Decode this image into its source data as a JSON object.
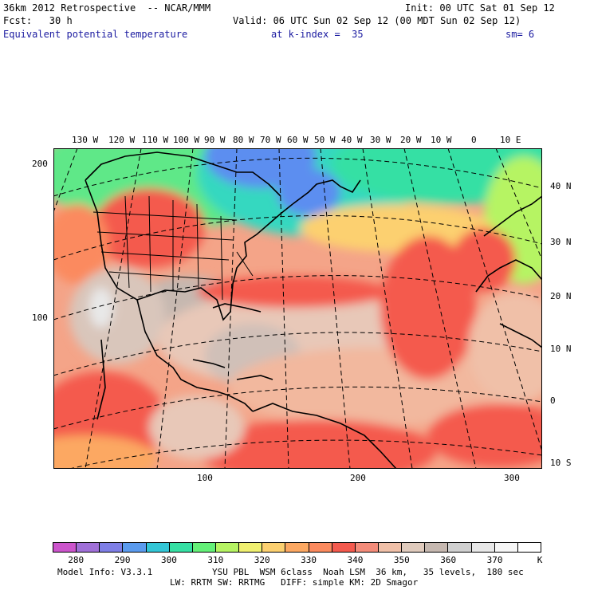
{
  "header": {
    "line1_left": "36km 2012 Retrospective  -- NCAR/MMM",
    "line1_right": "Init: 00 UTC Sat 01 Sep 12",
    "line2_left": "Fcst:   30 h",
    "line2_right": "Valid: 06 UTC Sun 02 Sep 12 (00 MDT Sun 02 Sep 12)",
    "line3_field": "Equivalent potential temperature",
    "line3_level": "at k-index =  35",
    "line3_smooth": "sm= 6"
  },
  "map": {
    "lon_labels_top": [
      "130 W",
      "120 W",
      "110 W",
      "100 W",
      "90 W",
      "80 W",
      "70 W",
      "60 W",
      "50 W",
      "40 W",
      "30 W",
      "20 W",
      "10 W",
      "0",
      "10 E"
    ],
    "lat_labels_right": [
      "40 N",
      "30 N",
      "20 N",
      "10 N",
      "0",
      "10 S"
    ],
    "grid_left_labels": [
      "200",
      "100"
    ],
    "grid_bottom_labels": [
      "100",
      "200",
      "300"
    ]
  },
  "colorbar": {
    "colors": [
      "#cc55cc",
      "#a070d8",
      "#7f7fe6",
      "#5b9bee",
      "#33c6d6",
      "#36e0a4",
      "#64f078",
      "#b6f463",
      "#f0f070",
      "#fcd070",
      "#fca862",
      "#fb8a5e",
      "#f45a4e",
      "#f48c7a",
      "#f0c0a8",
      "#e0cbbd",
      "#c6b8b0",
      "#d0d0d0",
      "#e8e8e8",
      "#f6f6f6",
      "#ffffff"
    ],
    "ticks": [
      "280",
      "290",
      "300",
      "310",
      "320",
      "330",
      "340",
      "350",
      "360",
      "370",
      "K"
    ],
    "unit": "K"
  },
  "footer": {
    "line1_left": "Model Info: V3.3.1",
    "line1_right": "YSU PBL  WSM 6class  Noah LSM  36 km,   35 levels,  180 sec",
    "line2": "LW: RRTM SW: RRTMG   DIFF: simple KM: 2D Smagor"
  }
}
